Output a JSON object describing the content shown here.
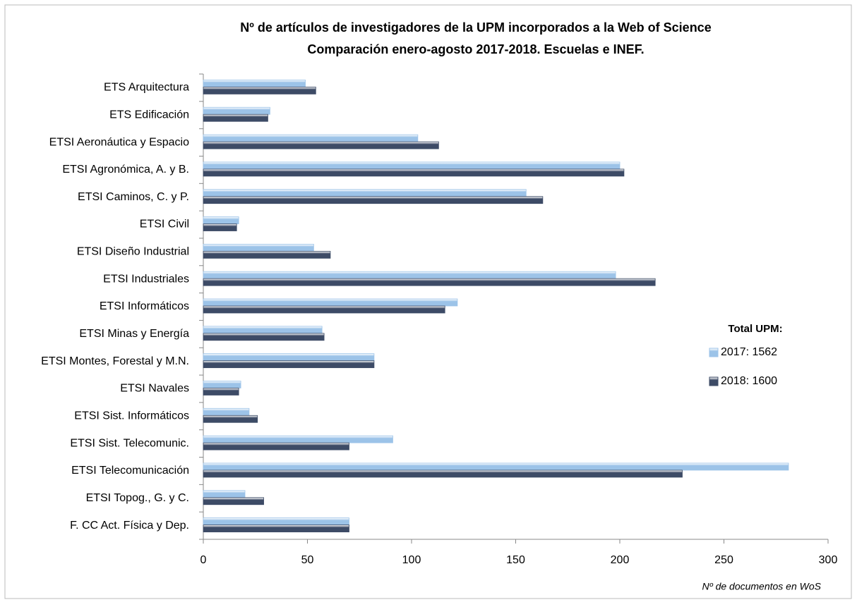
{
  "chart_data": {
    "type": "hbar",
    "title": "Nº de artículos de investigadores de la UPM incorporados  a la Web of Science",
    "subtitle": "Comparación enero-agosto 2017-2018. Escuelas e INEF.",
    "x_label": "Nº de documentos en WoS",
    "legend_title": "Total UPM:",
    "legend": "right",
    "categories": [
      "ETS Arquitectura",
      "ETS Edificación",
      "ETSI Aeronáutica y Espacio",
      "ETSI Agronómica, A. y B.",
      "ETSI Caminos, C. y P.",
      "ETSI Civil",
      "ETSI Diseño Industrial",
      "ETSI Industriales",
      "ETSI Informáticos",
      "ETSI Minas y Energía",
      "ETSI Montes, Forestal y M.N.",
      "ETSI Navales",
      "ETSI Sist. Informáticos",
      "ETSI Sist. Telecomunic.",
      "ETSI Telecomunicación",
      "ETSI Topog., G. y C.",
      "F. CC Act. Física y Dep."
    ],
    "series": [
      {
        "name": "2017: 1562",
        "color": "#9cc3e8",
        "values": [
          49,
          32,
          103,
          200,
          155,
          17,
          53,
          198,
          122,
          57,
          82,
          18,
          22,
          91,
          281,
          20,
          70
        ]
      },
      {
        "name": "2018: 1600",
        "color": "#3d4b66",
        "values": [
          54,
          31,
          113,
          202,
          163,
          16,
          61,
          217,
          116,
          58,
          82,
          17,
          26,
          70,
          230,
          29,
          70
        ]
      }
    ],
    "xlim": [
      0,
      300
    ],
    "xticks": [
      0,
      50,
      100,
      150,
      200,
      250,
      300
    ]
  }
}
